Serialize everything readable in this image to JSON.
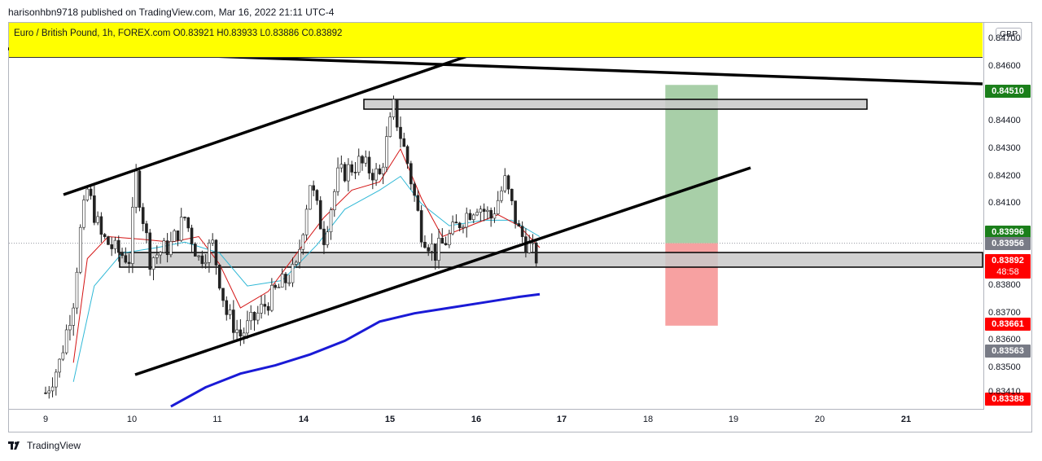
{
  "publisher_line": "harisonhbn9718 published on TradingView.com, Mar 16, 2022 21:11 UTC-4",
  "legend": {
    "text": "Euro / British Pound, 1h, FOREX.com  O0.83921  H0.83933  L0.83886  C0.83892",
    "background": "#ffff00"
  },
  "currency": "GBP",
  "footer": {
    "brand": "TradingView",
    "icon": "tradingview-logo-icon"
  },
  "price_labels": [
    {
      "text": "0.84510",
      "price": 0.8451,
      "color": "#1b7f1b"
    },
    {
      "text": "0.83996",
      "price": 0.83996,
      "color": "#1b7f1b"
    },
    {
      "text": "0.83956",
      "price": 0.83956,
      "color": "#787b86"
    },
    {
      "text": "0.83892",
      "price": 0.83892,
      "color": "#ff0000",
      "sub": "48:58"
    },
    {
      "text": "0.83661",
      "price": 0.83661,
      "color": "#ff0000"
    },
    {
      "text": "0.83563",
      "price": 0.83563,
      "color": "#787b86"
    },
    {
      "text": "0.83388",
      "price": 0.83388,
      "color": "#ff0000"
    }
  ],
  "chart_data": {
    "type": "candlestick",
    "symbol": "Euro / British Pound",
    "timeframe": "1h",
    "ylim": [
      0.8336,
      0.8478
    ],
    "y_ticks": [
      0.847,
      0.846,
      0.844,
      0.843,
      0.842,
      0.841,
      0.838,
      0.837,
      0.836,
      0.835,
      0.8341
    ],
    "y_tick_labels": [
      "0.84700",
      "0.84600",
      "0.84400",
      "0.84300",
      "0.84200",
      "0.84100",
      "0.83800",
      "0.83700",
      "0.83600",
      "0.83500",
      "0.83410"
    ],
    "x_ticks": [
      "9",
      "10",
      "11",
      "14",
      "15",
      "16",
      "17",
      "18",
      "19",
      "20",
      "21"
    ],
    "ohlc_close_path": [
      [
        9.0,
        0.8341
      ],
      [
        9.2,
        0.8352
      ],
      [
        9.4,
        0.8375
      ],
      [
        9.5,
        0.84
      ],
      [
        9.6,
        0.8415
      ],
      [
        9.8,
        0.8398
      ],
      [
        10.0,
        0.8393
      ],
      [
        10.2,
        0.839
      ],
      [
        10.3,
        0.842
      ],
      [
        10.5,
        0.839
      ],
      [
        10.8,
        0.8395
      ],
      [
        11.0,
        0.8405
      ],
      [
        11.2,
        0.839
      ],
      [
        11.4,
        0.8395
      ],
      [
        11.6,
        0.837
      ],
      [
        11.8,
        0.8362
      ],
      [
        12.0,
        0.8368
      ],
      [
        12.3,
        0.8378
      ],
      [
        12.6,
        0.8386
      ],
      [
        12.8,
        0.8418
      ],
      [
        13.0,
        0.8398
      ],
      [
        13.2,
        0.842
      ],
      [
        13.5,
        0.8425
      ],
      [
        13.8,
        0.842
      ],
      [
        14.0,
        0.8445
      ],
      [
        14.2,
        0.8425
      ],
      [
        14.4,
        0.84
      ],
      [
        14.6,
        0.8392
      ],
      [
        14.8,
        0.8398
      ],
      [
        15.0,
        0.8405
      ],
      [
        15.2,
        0.841
      ],
      [
        15.4,
        0.8405
      ],
      [
        15.6,
        0.8418
      ],
      [
        15.8,
        0.84
      ],
      [
        16.0,
        0.8392
      ],
      [
        16.1,
        0.8389
      ]
    ],
    "ema_fast_path": [
      [
        9.4,
        0.8352
      ],
      [
        9.6,
        0.839
      ],
      [
        9.9,
        0.8398
      ],
      [
        10.4,
        0.8397
      ],
      [
        10.8,
        0.8396
      ],
      [
        11.2,
        0.8398
      ],
      [
        11.5,
        0.8388
      ],
      [
        11.8,
        0.8372
      ],
      [
        12.2,
        0.8378
      ],
      [
        12.7,
        0.8395
      ],
      [
        13.0,
        0.8405
      ],
      [
        13.4,
        0.8415
      ],
      [
        13.8,
        0.8418
      ],
      [
        14.1,
        0.843
      ],
      [
        14.4,
        0.8412
      ],
      [
        14.7,
        0.8398
      ],
      [
        15.1,
        0.8402
      ],
      [
        15.5,
        0.8406
      ],
      [
        15.8,
        0.8402
      ],
      [
        16.1,
        0.8394
      ]
    ],
    "ema_mid_path": [
      [
        9.4,
        0.8345
      ],
      [
        9.7,
        0.838
      ],
      [
        10.1,
        0.8392
      ],
      [
        10.6,
        0.8394
      ],
      [
        11.0,
        0.8396
      ],
      [
        11.5,
        0.8392
      ],
      [
        11.9,
        0.838
      ],
      [
        12.4,
        0.8382
      ],
      [
        12.9,
        0.8395
      ],
      [
        13.3,
        0.8408
      ],
      [
        13.8,
        0.8415
      ],
      [
        14.1,
        0.842
      ],
      [
        14.4,
        0.841
      ],
      [
        14.8,
        0.8402
      ],
      [
        15.3,
        0.8404
      ],
      [
        15.7,
        0.8404
      ],
      [
        16.1,
        0.8398
      ]
    ],
    "ema_200_path": [
      [
        10.8,
        0.8336
      ],
      [
        11.3,
        0.8343
      ],
      [
        11.8,
        0.8348
      ],
      [
        12.3,
        0.8351
      ],
      [
        12.8,
        0.8355
      ],
      [
        13.3,
        0.836
      ],
      [
        13.8,
        0.8367
      ],
      [
        14.3,
        0.837
      ],
      [
        14.8,
        0.8372
      ],
      [
        15.3,
        0.8374
      ],
      [
        15.8,
        0.8376
      ],
      [
        16.1,
        0.8377
      ]
    ],
    "trendlines": [
      {
        "name": "upper-channel",
        "points": [
          [
            9.2,
            0.8415
          ],
          [
            14.0,
            0.8475
          ]
        ]
      },
      {
        "name": "lower-channel",
        "points": [
          [
            9.8,
            0.8349
          ],
          [
            17.3,
            0.8423
          ]
        ]
      },
      {
        "name": "top-resistance",
        "points": [
          [
            8.5,
            0.8463
          ],
          [
            19.8,
            0.8452
          ]
        ]
      }
    ],
    "zones": [
      {
        "name": "resistance-zone",
        "x": [
          13.7,
          19.5
        ],
        "y": [
          0.8445,
          0.8449
        ]
      },
      {
        "name": "support-zone",
        "x": [
          9.8,
          21.9
        ],
        "y": [
          0.8386,
          0.8392
        ]
      }
    ],
    "position": {
      "entry": 0.83956,
      "target": 0.8451,
      "stop": 0.83661,
      "x": [
        16.2,
        17.0
      ],
      "profit_color": "#a3cca3",
      "loss_color": "#f79c9c"
    }
  }
}
